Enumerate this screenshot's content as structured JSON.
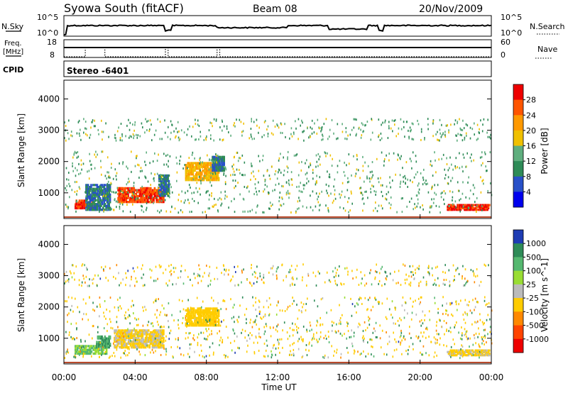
{
  "header": {
    "station": "Syowa South (fitACF)",
    "beam": "Beam 08",
    "date": "20/Nov/2009"
  },
  "strips": {
    "nsky": {
      "label": "N.Sky",
      "tick_top": "10^5",
      "tick_bottom": "10^0"
    },
    "nsearch": {
      "label": "N.Search",
      "tick_top": "10^5",
      "tick_bottom": "10^0"
    },
    "freq": {
      "label_line1": "Freq.",
      "label_line2": "[MHz]",
      "tick_top": "18",
      "tick_bottom": "8"
    },
    "nave": {
      "label": "Nave",
      "tick_top": "60",
      "tick_bottom": "0"
    },
    "cpid": {
      "label": "CPID",
      "value": "Stereo -6401"
    }
  },
  "chart_data": [
    {
      "type": "heatmap",
      "panel": "power",
      "xlabel": "Time UT",
      "ylabel": "Slant Range [km]",
      "xlim_hours": [
        0,
        24
      ],
      "ylim": [
        180,
        4600
      ],
      "x_ticks": [
        "00:00",
        "04:00",
        "08:00",
        "12:00",
        "16:00",
        "20:00",
        "00:00"
      ],
      "y_ticks": [
        1000,
        2000,
        3000,
        4000
      ],
      "colorbar": {
        "title": "Power [dB]",
        "ticks": [
          "4",
          "8",
          "12",
          "16",
          "20",
          "24",
          "28"
        ],
        "colors": [
          "#0000ee",
          "#2850c8",
          "#2e8b57",
          "#5fae7e",
          "#f0c000",
          "#ff9900",
          "#ff5500",
          "#ee0000"
        ]
      },
      "regions": [
        {
          "t0": 0.6,
          "t1": 1.6,
          "r0": 500,
          "r1": 800,
          "value": 26
        },
        {
          "t0": 1.2,
          "t1": 2.6,
          "r0": 450,
          "r1": 1300,
          "value": 6
        },
        {
          "t0": 3.0,
          "t1": 5.6,
          "r0": 700,
          "r1": 1200,
          "value": 25
        },
        {
          "t0": 5.3,
          "t1": 5.9,
          "r0": 900,
          "r1": 1600,
          "value": 6
        },
        {
          "t0": 6.8,
          "t1": 8.7,
          "r0": 1400,
          "r1": 2000,
          "value": 18
        },
        {
          "t0": 8.3,
          "t1": 9.0,
          "r0": 1700,
          "r1": 2200,
          "value": 6
        },
        {
          "t0": 21.5,
          "t1": 23.9,
          "r0": 450,
          "r1": 650,
          "value": 27
        }
      ]
    },
    {
      "type": "heatmap",
      "panel": "velocity",
      "xlabel": "Time UT",
      "ylabel": "Slant Range [km]",
      "xlim_hours": [
        0,
        24
      ],
      "ylim": [
        180,
        4600
      ],
      "x_ticks": [
        "00:00",
        "04:00",
        "08:00",
        "12:00",
        "16:00",
        "20:00",
        "00:00"
      ],
      "y_ticks": [
        1000,
        2000,
        3000,
        4000
      ],
      "colorbar": {
        "title": "Velocity [m s^-1]",
        "ticks": [
          "1000",
          "500",
          "100",
          "25",
          "-25",
          "-100",
          "-500",
          "-1000"
        ],
        "colors": [
          "#1e3cb4",
          "#2e8b57",
          "#55b870",
          "#99dd33",
          "#bbbbbb",
          "#ffcc00",
          "#ff8800",
          "#ff4400",
          "#ee0000"
        ]
      },
      "regions": [
        {
          "t0": 0.6,
          "t1": 2.4,
          "r0": 500,
          "r1": 800,
          "value": 60
        },
        {
          "t0": 1.8,
          "t1": 2.6,
          "r0": 700,
          "r1": 1100,
          "value": 300
        },
        {
          "t0": 2.8,
          "t1": 5.6,
          "r0": 700,
          "r1": 1300,
          "value": -80
        },
        {
          "t0": 6.8,
          "t1": 8.7,
          "r0": 1400,
          "r1": 2000,
          "value": -150
        },
        {
          "t0": 21.5,
          "t1": 23.9,
          "r0": 450,
          "r1": 650,
          "value": -80
        }
      ]
    }
  ]
}
